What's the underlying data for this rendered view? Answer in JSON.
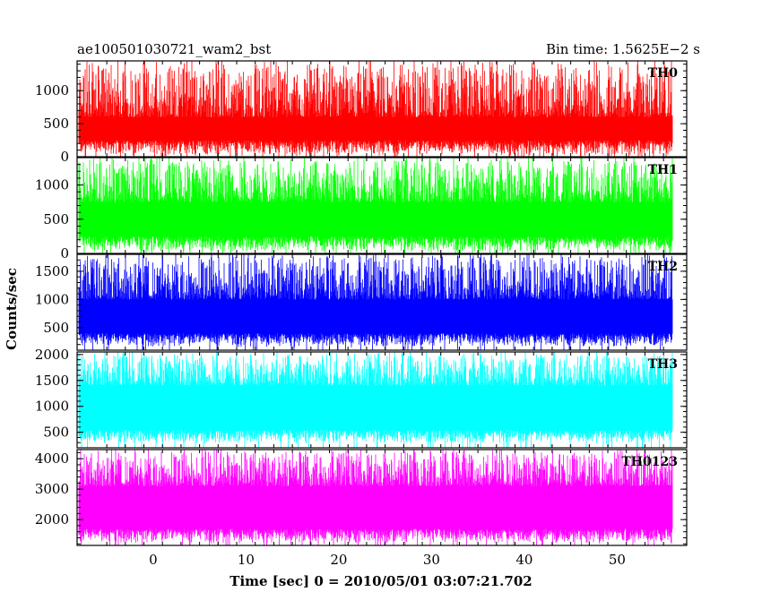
{
  "chart_data": {
    "type": "line",
    "title_left": "ae100501030721_wam2_bst",
    "title_right": "Bin time: 1.5625E−2 s",
    "xlabel": "Time [sec] 0 = 2010/05/01 03:07:21.702",
    "ylabel": "Counts/sec",
    "xlim": [
      -8.2,
      57.5
    ],
    "data_range": [
      -8,
      56
    ],
    "x_ticks": [
      "0",
      "10",
      "20",
      "30",
      "40",
      "50"
    ],
    "grid": false,
    "panels": [
      {
        "name": "TH0",
        "color": "#ff0000",
        "ylim": [
          0,
          1450
        ],
        "y_ticks": [
          "0",
          "500",
          "1000"
        ],
        "band": {
          "low_min": 10,
          "low_max": 250,
          "high_min": 600,
          "high_max": 1400
        }
      },
      {
        "name": "TH1",
        "color": "#00ff00",
        "ylim": [
          0,
          1400
        ],
        "y_ticks": [
          "0",
          "500",
          "1000"
        ],
        "band": {
          "low_min": 20,
          "low_max": 250,
          "high_min": 750,
          "high_max": 1350
        }
      },
      {
        "name": "TH2",
        "color": "#0000ff",
        "ylim": [
          100,
          1800
        ],
        "y_ticks": [
          "500",
          "1000",
          "1500"
        ],
        "band": {
          "low_min": 150,
          "low_max": 400,
          "high_min": 1000,
          "high_max": 1750
        }
      },
      {
        "name": "TH3",
        "color": "#00ffff",
        "ylim": [
          200,
          2050
        ],
        "y_ticks": [
          "500",
          "1000",
          "1500",
          "2000"
        ],
        "band": {
          "low_min": 280,
          "low_max": 550,
          "high_min": 1400,
          "high_max": 2000
        }
      },
      {
        "name": "TH0123",
        "color": "#ff00ff",
        "ylim": [
          1150,
          4300
        ],
        "y_ticks": [
          "2000",
          "3000",
          "4000"
        ],
        "band": {
          "low_min": 1200,
          "low_max": 1700,
          "high_min": 3100,
          "high_max": 4200
        }
      }
    ]
  }
}
